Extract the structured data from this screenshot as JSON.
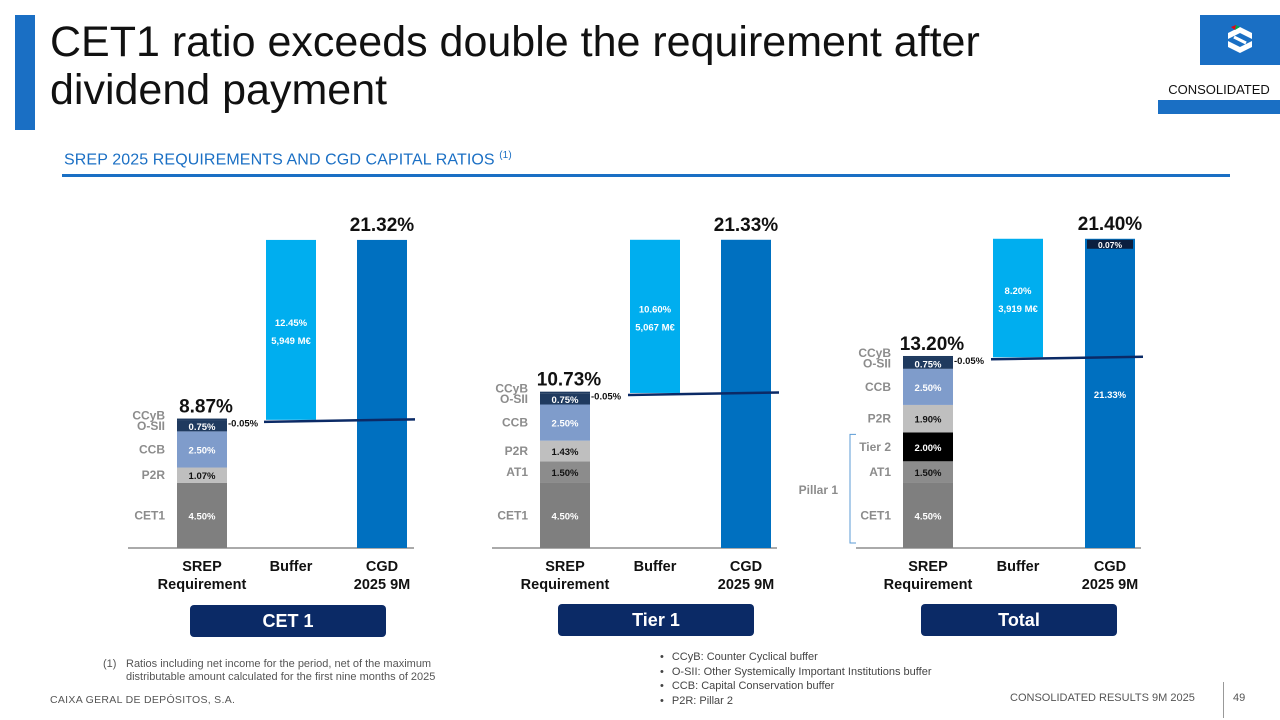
{
  "header": {
    "title": "CET1 ratio exceeds double the requirement after dividend payment",
    "tag": "CONSOLIDATED",
    "section_title": "SREP 2025 REQUIREMENTS AND CGD CAPITAL RATIOS",
    "section_note": "(1)"
  },
  "colors": {
    "brand_blue": "#1a6fc4",
    "cet1": "#7f7f7f",
    "at1": "#8c8c8c",
    "tier2": "#000000",
    "p2r": "#bfbfbf",
    "ccb": "#7f9ccb",
    "osii": "#1f3a5f",
    "buffer": "#00aeef",
    "cgd": "#0070c0",
    "group_button": "#0b2a66"
  },
  "chart_data": [
    {
      "type": "bar",
      "group": "CET 1",
      "categories": [
        "SREP Requirement",
        "Buffer",
        "CGD 2025 9M"
      ],
      "srep_components": [
        {
          "name": "CET1",
          "value": 4.5,
          "label": "4.50%"
        },
        {
          "name": "P2R",
          "value": 1.07,
          "label": "1.07%"
        },
        {
          "name": "CCB",
          "value": 2.5,
          "label": "2.50%"
        },
        {
          "name": "O-SII",
          "value": 0.75,
          "label": "0.75%"
        },
        {
          "name": "CCyB",
          "value": 0.05,
          "label": "0.05%"
        }
      ],
      "srep_total": "8.87%",
      "buffer": {
        "value": 12.45,
        "label": "12.45%",
        "amount": "5,949 M€"
      },
      "cgd": {
        "value": 21.32,
        "label": "21.32%"
      }
    },
    {
      "type": "bar",
      "group": "Tier 1",
      "categories": [
        "SREP Requirement",
        "Buffer",
        "CGD 2025 9M"
      ],
      "srep_components": [
        {
          "name": "CET1",
          "value": 4.5,
          "label": "4.50%"
        },
        {
          "name": "AT1",
          "value": 1.5,
          "label": "1.50%"
        },
        {
          "name": "P2R",
          "value": 1.43,
          "label": "1.43%"
        },
        {
          "name": "CCB",
          "value": 2.5,
          "label": "2.50%"
        },
        {
          "name": "O-SII",
          "value": 0.75,
          "label": "0.75%"
        },
        {
          "name": "CCyB",
          "value": 0.05,
          "label": "0.05%"
        }
      ],
      "srep_total": "10.73%",
      "buffer": {
        "value": 10.6,
        "label": "10.60%",
        "amount": "5,067 M€"
      },
      "cgd": {
        "value": 21.33,
        "label": "21.33%"
      }
    },
    {
      "type": "bar",
      "group": "Total",
      "categories": [
        "SREP Requirement",
        "Buffer",
        "CGD 2025 9M"
      ],
      "srep_components": [
        {
          "name": "CET1",
          "value": 4.5,
          "label": "4.50%"
        },
        {
          "name": "AT1",
          "value": 1.5,
          "label": "1.50%"
        },
        {
          "name": "Tier 2",
          "value": 2.0,
          "label": "2.00%"
        },
        {
          "name": "P2R",
          "value": 1.9,
          "label": "1.90%"
        },
        {
          "name": "CCB",
          "value": 2.5,
          "label": "2.50%"
        },
        {
          "name": "O-SII",
          "value": 0.75,
          "label": "0.75%"
        },
        {
          "name": "CCyB",
          "value": 0.05,
          "label": "0.05%"
        }
      ],
      "srep_total": "13.20%",
      "pillar_label": "Pillar 1",
      "buffer": {
        "value": 8.2,
        "label": "8.20%",
        "amount": "3,919 M€"
      },
      "cgd": {
        "value": 21.4,
        "label": "21.40%",
        "parts": [
          {
            "value": 21.33,
            "label": "21.33%"
          },
          {
            "value": 0.07,
            "label": "0.07%"
          }
        ]
      }
    }
  ],
  "axis_labels": {
    "srep": [
      "SREP",
      "Requirement"
    ],
    "buffer": "Buffer",
    "cgd": [
      "CGD",
      "2025 9M"
    ]
  },
  "footnote": {
    "number": "(1)",
    "text": "Ratios including net income for the period, net of the maximum distributable amount calculated for the first nine months of 2025"
  },
  "legend": [
    "CCyB: Counter Cyclical buffer",
    "O-SII: Other Systemically Important Institutions buffer",
    "CCB: Capital Conservation buffer",
    "P2R: Pillar 2"
  ],
  "footer": {
    "company": "CAIXA GERAL DE DEPÓSITOS, S.A.",
    "report": "CONSOLIDATED RESULTS 9M 2025",
    "page": "49"
  }
}
